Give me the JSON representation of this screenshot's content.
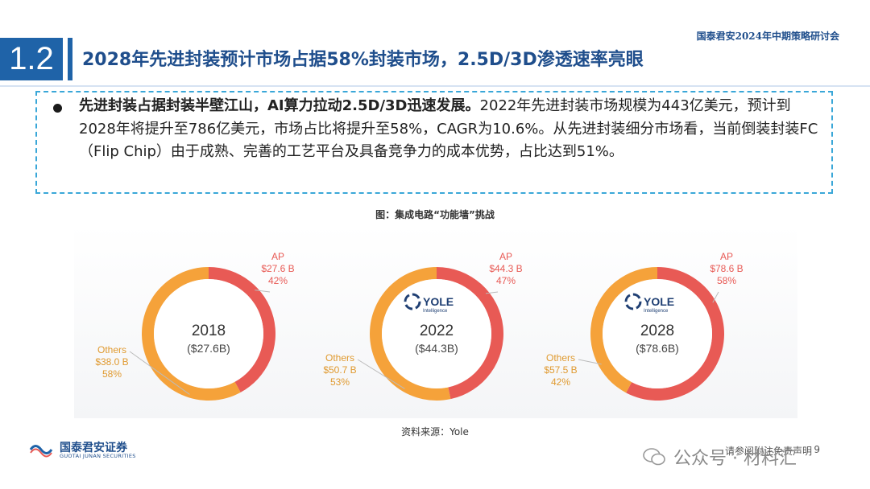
{
  "header": {
    "event": "国泰君安2024年中期策略研讨会",
    "section_number": "1.2",
    "title": "2028年先进封装预计市场占据58%封装市场，2.5D/3D渗透速率亮眼"
  },
  "summary": {
    "bold_text": "先进封装占据封装半壁江山，AI算力拉动2.5D/3D迅速发展。",
    "body_text": "2022年先进封装市场规模为443亿美元，预计到2028年将提升至786亿美元，市场占比将提升至58%，CAGR为10.6%。从先进封装细分市场看，当前倒装封装FC（Flip Chip）由于成熟、完善的工艺平台及具备竞争力的成本优势，占比达到51%。"
  },
  "figure": {
    "caption": "图：集成电路“功能墙”挑战",
    "source": "资料来源：Yole"
  },
  "chart_data": [
    {
      "type": "pie",
      "center_label": "2018",
      "center_sublabel": "($27.6B)",
      "logo_text": "",
      "categories": [
        "AP",
        "Others"
      ],
      "values": [
        27.6,
        38.0
      ],
      "value_labels": [
        "$27.6 B",
        "$38.0 B"
      ],
      "percent_labels": [
        "42%",
        "58%"
      ],
      "colors": [
        "#e85a55",
        "#f5a23a"
      ]
    },
    {
      "type": "pie",
      "center_label": "2022",
      "center_sublabel": "($44.3B)",
      "logo_text": "YOLE",
      "logo_sub": "Intelligence",
      "categories": [
        "AP",
        "Others"
      ],
      "values": [
        44.3,
        50.7
      ],
      "value_labels": [
        "$44.3 B",
        "$50.7 B"
      ],
      "percent_labels": [
        "47%",
        "53%"
      ],
      "colors": [
        "#e85a55",
        "#f5a23a"
      ]
    },
    {
      "type": "pie",
      "center_label": "2028",
      "center_sublabel": "($78.6B)",
      "logo_text": "YOLE",
      "logo_sub": "Intelligence",
      "categories": [
        "AP",
        "Others"
      ],
      "values": [
        78.6,
        57.5
      ],
      "value_labels": [
        "$78.6 B",
        "$57.5 B"
      ],
      "percent_labels": [
        "58%",
        "42%"
      ],
      "colors": [
        "#e85a55",
        "#f5a23a"
      ]
    }
  ],
  "footer": {
    "company_cn": "国泰君安证券",
    "company_en": "GUOTAI JUNAN SECURITIES",
    "disclaimer": "请参阅附注免责声明",
    "page": "9",
    "watermark": "公众号 · 材料汇"
  }
}
